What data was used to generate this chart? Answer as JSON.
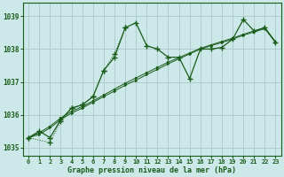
{
  "title": "Graphe pression niveau de la mer (hPa)",
  "bg_color": "#cce8e8",
  "line_color": "#1a5c1a",
  "grid_color": "#b0cccc",
  "xlim": [
    -0.5,
    23.5
  ],
  "ylim": [
    1034.75,
    1039.4
  ],
  "yticks": [
    1035,
    1036,
    1037,
    1038,
    1039
  ],
  "xticks": [
    0,
    1,
    2,
    3,
    4,
    5,
    6,
    7,
    8,
    9,
    10,
    11,
    12,
    13,
    14,
    15,
    16,
    17,
    18,
    19,
    20,
    21,
    22,
    23
  ],
  "series_wavy": {
    "x": [
      0,
      1,
      2,
      3,
      4,
      5,
      6,
      7,
      8,
      9,
      10,
      11,
      12,
      13,
      14,
      15,
      16,
      17,
      18,
      19,
      20,
      21,
      22,
      23
    ],
    "y": [
      1035.3,
      1035.5,
      1035.3,
      1035.85,
      1036.2,
      1036.3,
      1036.55,
      1037.35,
      1037.75,
      1038.65,
      1038.8,
      1038.1,
      1038.0,
      1037.75,
      1037.75,
      1037.1,
      1038.0,
      1038.0,
      1038.05,
      1038.3,
      1038.9,
      1038.55,
      1038.65,
      1038.2
    ]
  },
  "series_dotted": {
    "x": [
      0,
      2,
      3,
      4,
      5,
      6,
      7,
      8,
      9
    ],
    "y": [
      1035.3,
      1035.15,
      1035.8,
      1036.2,
      1036.3,
      1036.55,
      1037.35,
      1037.85,
      1038.65
    ]
  },
  "series_trend1": {
    "x": [
      0,
      1,
      2,
      3,
      4,
      5,
      6,
      7,
      8,
      9,
      10,
      11,
      12,
      13,
      14,
      15,
      16,
      17,
      18,
      19,
      20,
      21,
      22,
      23
    ],
    "y": [
      1035.3,
      1035.4,
      1035.6,
      1035.85,
      1036.05,
      1036.2,
      1036.38,
      1036.55,
      1036.72,
      1036.9,
      1037.05,
      1037.22,
      1037.38,
      1037.55,
      1037.7,
      1037.85,
      1038.0,
      1038.1,
      1038.2,
      1038.3,
      1038.42,
      1038.52,
      1038.62,
      1038.2
    ]
  },
  "series_trend2": {
    "x": [
      0,
      1,
      2,
      3,
      4,
      5,
      6,
      7,
      8,
      9,
      10,
      11,
      12,
      13,
      14,
      15,
      16,
      17,
      18,
      19,
      20,
      21,
      22,
      23
    ],
    "y": [
      1035.3,
      1035.45,
      1035.65,
      1035.9,
      1036.1,
      1036.25,
      1036.42,
      1036.6,
      1036.78,
      1036.96,
      1037.12,
      1037.28,
      1037.44,
      1037.6,
      1037.74,
      1037.88,
      1038.02,
      1038.13,
      1038.23,
      1038.33,
      1038.45,
      1038.55,
      1038.65,
      1038.22
    ]
  }
}
